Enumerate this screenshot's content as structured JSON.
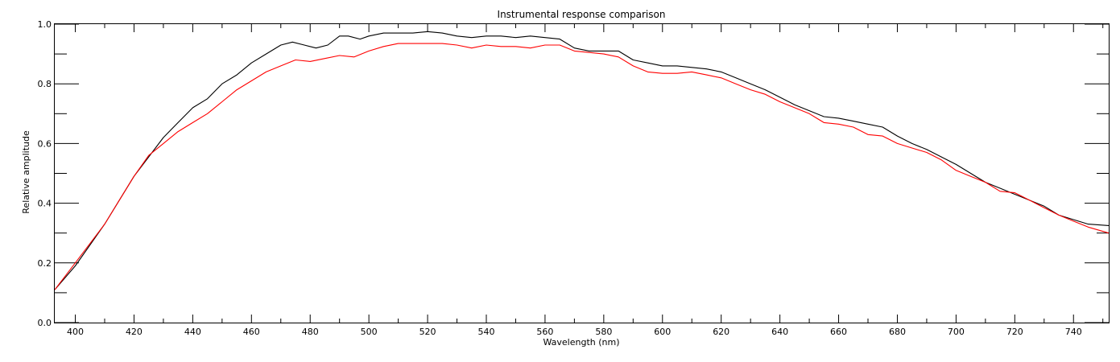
{
  "chart_data": {
    "type": "line",
    "title": "Instrumental response comparison",
    "xlabel": "Wavelength (nm)",
    "ylabel": "Relative amplitude",
    "xlim": [
      393,
      752
    ],
    "ylim": [
      0.0,
      1.0
    ],
    "grid": false,
    "x_ticks": [
      "400",
      "420",
      "440",
      "460",
      "480",
      "500",
      "520",
      "540",
      "560",
      "580",
      "600",
      "620",
      "640",
      "660",
      "680",
      "700",
      "720",
      "740"
    ],
    "y_ticks": [
      "0.0",
      "0.2",
      "0.4",
      "0.6",
      "0.8",
      "1.0"
    ],
    "series": [
      {
        "color": "#000000",
        "points": [
          [
            393,
            0.11
          ],
          [
            400,
            0.19
          ],
          [
            410,
            0.33
          ],
          [
            420,
            0.49
          ],
          [
            430,
            0.62
          ],
          [
            435,
            0.67
          ],
          [
            440,
            0.72
          ],
          [
            445,
            0.75
          ],
          [
            450,
            0.8
          ],
          [
            455,
            0.83
          ],
          [
            460,
            0.87
          ],
          [
            465,
            0.9
          ],
          [
            470,
            0.93
          ],
          [
            474,
            0.94
          ],
          [
            478,
            0.93
          ],
          [
            482,
            0.92
          ],
          [
            486,
            0.93
          ],
          [
            490,
            0.96
          ],
          [
            493,
            0.96
          ],
          [
            497,
            0.95
          ],
          [
            500,
            0.96
          ],
          [
            505,
            0.97
          ],
          [
            510,
            0.97
          ],
          [
            515,
            0.97
          ],
          [
            520,
            0.975
          ],
          [
            525,
            0.97
          ],
          [
            530,
            0.96
          ],
          [
            535,
            0.955
          ],
          [
            540,
            0.96
          ],
          [
            545,
            0.96
          ],
          [
            550,
            0.955
          ],
          [
            555,
            0.96
          ],
          [
            560,
            0.955
          ],
          [
            565,
            0.95
          ],
          [
            570,
            0.92
          ],
          [
            575,
            0.91
          ],
          [
            580,
            0.91
          ],
          [
            585,
            0.91
          ],
          [
            590,
            0.88
          ],
          [
            595,
            0.87
          ],
          [
            600,
            0.86
          ],
          [
            605,
            0.86
          ],
          [
            610,
            0.855
          ],
          [
            615,
            0.85
          ],
          [
            620,
            0.84
          ],
          [
            625,
            0.82
          ],
          [
            630,
            0.8
          ],
          [
            635,
            0.78
          ],
          [
            640,
            0.755
          ],
          [
            645,
            0.73
          ],
          [
            650,
            0.71
          ],
          [
            655,
            0.69
          ],
          [
            660,
            0.685
          ],
          [
            665,
            0.675
          ],
          [
            670,
            0.665
          ],
          [
            675,
            0.655
          ],
          [
            680,
            0.625
          ],
          [
            685,
            0.6
          ],
          [
            690,
            0.58
          ],
          [
            695,
            0.555
          ],
          [
            700,
            0.53
          ],
          [
            705,
            0.5
          ],
          [
            710,
            0.47
          ],
          [
            715,
            0.45
          ],
          [
            720,
            0.43
          ],
          [
            725,
            0.41
          ],
          [
            730,
            0.39
          ],
          [
            735,
            0.36
          ],
          [
            740,
            0.345
          ],
          [
            745,
            0.33
          ],
          [
            752,
            0.325
          ]
        ]
      },
      {
        "color": "#ff0000",
        "points": [
          [
            393,
            0.11
          ],
          [
            400,
            0.2
          ],
          [
            410,
            0.33
          ],
          [
            420,
            0.49
          ],
          [
            425,
            0.56
          ],
          [
            430,
            0.6
          ],
          [
            435,
            0.64
          ],
          [
            440,
            0.67
          ],
          [
            445,
            0.7
          ],
          [
            450,
            0.74
          ],
          [
            455,
            0.78
          ],
          [
            460,
            0.81
          ],
          [
            465,
            0.84
          ],
          [
            470,
            0.86
          ],
          [
            475,
            0.88
          ],
          [
            480,
            0.875
          ],
          [
            485,
            0.885
          ],
          [
            490,
            0.895
          ],
          [
            495,
            0.89
          ],
          [
            500,
            0.91
          ],
          [
            505,
            0.925
          ],
          [
            510,
            0.935
          ],
          [
            515,
            0.935
          ],
          [
            520,
            0.935
          ],
          [
            525,
            0.935
          ],
          [
            530,
            0.93
          ],
          [
            535,
            0.92
          ],
          [
            540,
            0.93
          ],
          [
            545,
            0.925
          ],
          [
            550,
            0.925
          ],
          [
            555,
            0.92
          ],
          [
            560,
            0.93
          ],
          [
            565,
            0.93
          ],
          [
            570,
            0.91
          ],
          [
            575,
            0.905
          ],
          [
            580,
            0.9
          ],
          [
            585,
            0.89
          ],
          [
            590,
            0.86
          ],
          [
            595,
            0.84
          ],
          [
            600,
            0.835
          ],
          [
            605,
            0.835
          ],
          [
            610,
            0.84
          ],
          [
            615,
            0.83
          ],
          [
            620,
            0.82
          ],
          [
            625,
            0.8
          ],
          [
            630,
            0.78
          ],
          [
            635,
            0.765
          ],
          [
            640,
            0.74
          ],
          [
            645,
            0.72
          ],
          [
            650,
            0.7
          ],
          [
            655,
            0.67
          ],
          [
            660,
            0.665
          ],
          [
            665,
            0.655
          ],
          [
            670,
            0.63
          ],
          [
            675,
            0.625
          ],
          [
            680,
            0.6
          ],
          [
            685,
            0.585
          ],
          [
            690,
            0.57
          ],
          [
            695,
            0.545
          ],
          [
            700,
            0.51
          ],
          [
            705,
            0.49
          ],
          [
            710,
            0.47
          ],
          [
            715,
            0.44
          ],
          [
            720,
            0.435
          ],
          [
            725,
            0.41
          ],
          [
            730,
            0.385
          ],
          [
            735,
            0.36
          ],
          [
            740,
            0.34
          ],
          [
            745,
            0.32
          ],
          [
            752,
            0.3
          ]
        ]
      }
    ]
  }
}
